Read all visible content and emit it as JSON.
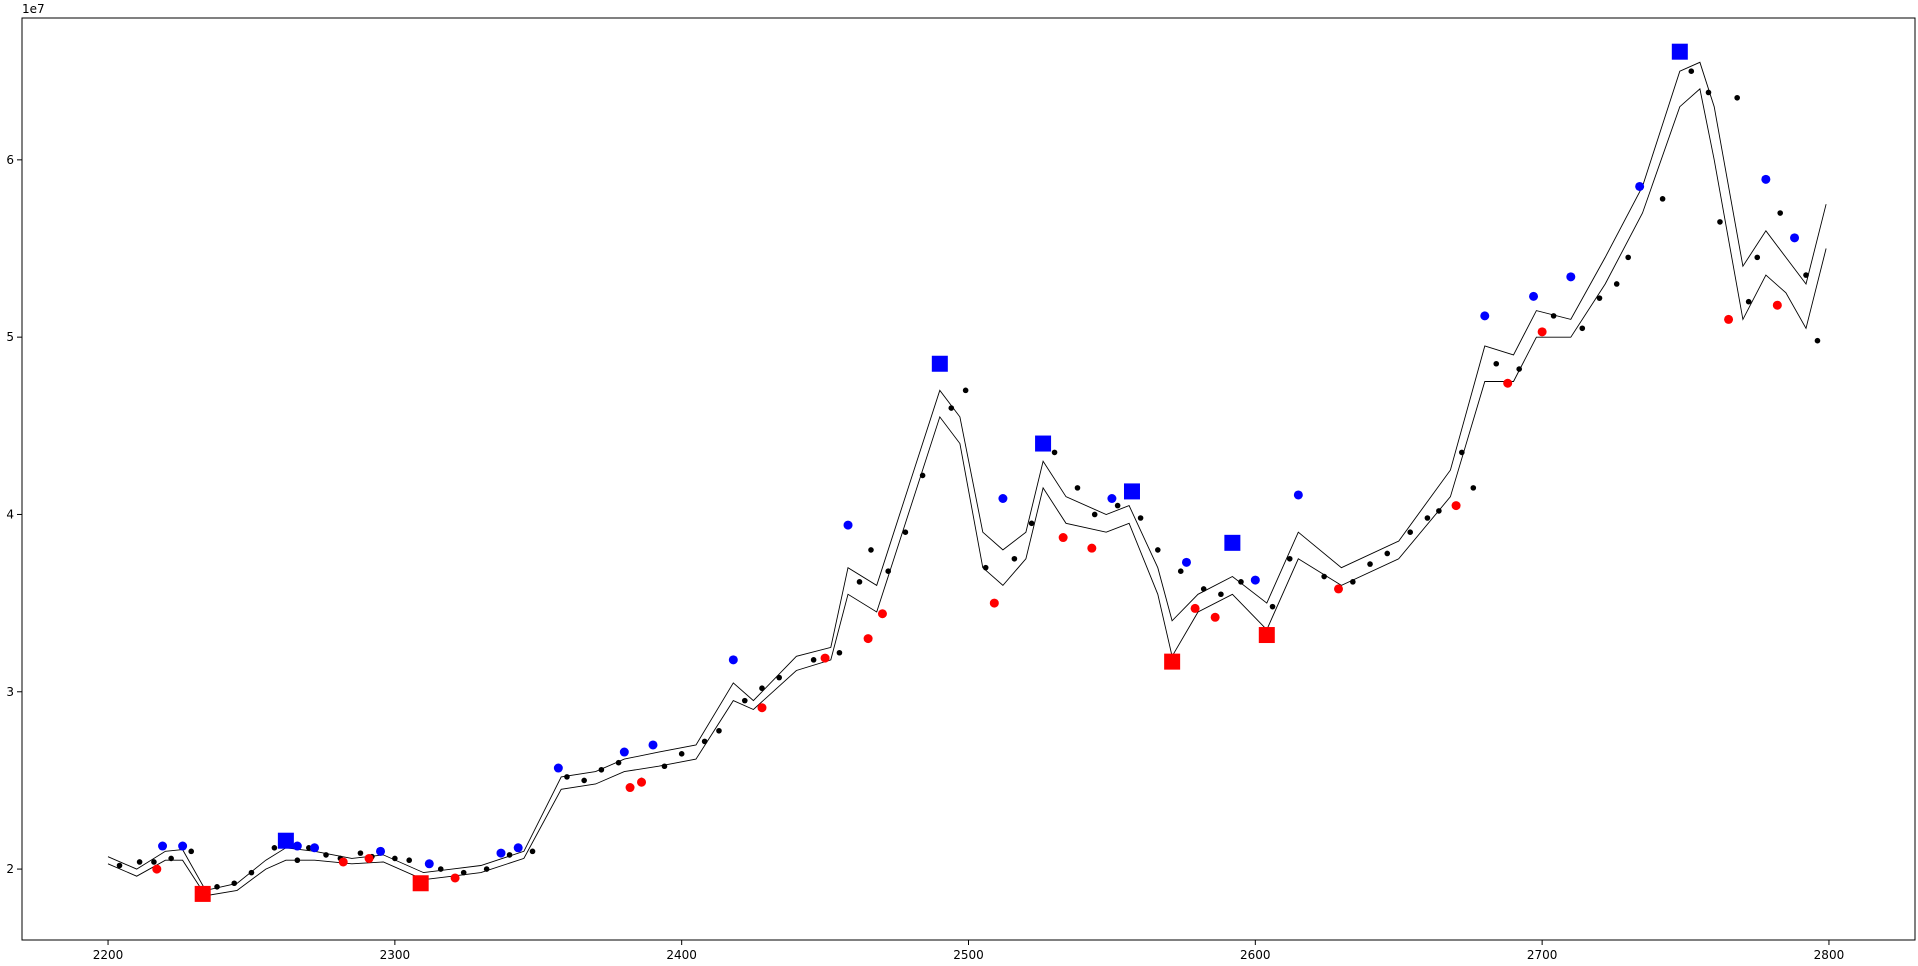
{
  "chart_data": {
    "type": "line",
    "title": "",
    "xlabel": "",
    "ylabel": "",
    "y_scale_label": "1e7",
    "xlim": [
      2170,
      2830
    ],
    "ylim": [
      16000000.0,
      68000000.0
    ],
    "x_ticks": [
      2200,
      2300,
      2400,
      2500,
      2600,
      2700,
      2800
    ],
    "y_ticks": [
      20000000.0,
      30000000.0,
      40000000.0,
      50000000.0,
      60000000.0
    ],
    "x_tick_labels": [
      "2200",
      "2300",
      "2400",
      "2500",
      "2600",
      "2700",
      "2800"
    ],
    "y_tick_labels": [
      "2",
      "3",
      "4",
      "5",
      "6"
    ],
    "grid": false,
    "legend": "none",
    "colors": {
      "line": "#000000",
      "small_point": "#000000",
      "peak": "#0000ff",
      "trough": "#ff0000"
    },
    "series": [
      {
        "style": "thin-line",
        "x": [
          2200,
          2210,
          2220,
          2226,
          2234,
          2245,
          2255,
          2262,
          2272,
          2285,
          2296,
          2310,
          2320,
          2330,
          2345,
          2358,
          2370,
          2380,
          2392,
          2405,
          2418,
          2425,
          2440,
          2452,
          2458,
          2468,
          2480,
          2490,
          2497,
          2505,
          2512,
          2520,
          2526,
          2534,
          2548,
          2556,
          2566,
          2571,
          2580,
          2592,
          2604,
          2615,
          2630,
          2650,
          2668,
          2680,
          2690,
          2698,
          2710,
          2722,
          2735,
          2748,
          2755,
          2760,
          2770,
          2778,
          2785,
          2792,
          2799
        ],
        "y": [
          20700000.0,
          20000000.0,
          21000000.0,
          21100000.0,
          18800000.0,
          19200000.0,
          20500000.0,
          21200000.0,
          21000000.0,
          20600000.0,
          20800000.0,
          19800000.0,
          20000000.0,
          20200000.0,
          21000000.0,
          25200000.0,
          25500000.0,
          26200000.0,
          26600000.0,
          27000000.0,
          30500000.0,
          29500000.0,
          32000000.0,
          32500000.0,
          37000000.0,
          36000000.0,
          42000000.0,
          47000000.0,
          45500000.0,
          39000000.0,
          38000000.0,
          39000000.0,
          43000000.0,
          41000000.0,
          40000000.0,
          40500000.0,
          37000000.0,
          34000000.0,
          35500000.0,
          36500000.0,
          35000000.0,
          39000000.0,
          37000000.0,
          38500000.0,
          42500000.0,
          49500000.0,
          49000000.0,
          51500000.0,
          51000000.0,
          54500000.0,
          58500000.0,
          65000000.0,
          65500000.0,
          63000000.0,
          54000000.0,
          56000000.0,
          54500000.0,
          53000000.0,
          57500000.0
        ]
      },
      {
        "style": "thin-line",
        "x": [
          2200,
          2210,
          2220,
          2226,
          2234,
          2245,
          2255,
          2262,
          2272,
          2285,
          2296,
          2310,
          2320,
          2330,
          2345,
          2358,
          2370,
          2380,
          2392,
          2405,
          2418,
          2425,
          2440,
          2452,
          2458,
          2468,
          2480,
          2490,
          2497,
          2505,
          2512,
          2520,
          2526,
          2534,
          2548,
          2556,
          2566,
          2571,
          2580,
          2592,
          2604,
          2615,
          2630,
          2650,
          2668,
          2680,
          2690,
          2698,
          2710,
          2722,
          2735,
          2748,
          2755,
          2760,
          2770,
          2778,
          2785,
          2792,
          2799
        ],
        "y": [
          20300000.0,
          19600000.0,
          20500000.0,
          20500000.0,
          18500000.0,
          18800000.0,
          20000000.0,
          20500000.0,
          20500000.0,
          20300000.0,
          20400000.0,
          19400000.0,
          19600000.0,
          19800000.0,
          20600000.0,
          24500000.0,
          24800000.0,
          25500000.0,
          25800000.0,
          26200000.0,
          29500000.0,
          29000000.0,
          31200000.0,
          31800000.0,
          35500000.0,
          34500000.0,
          40500000.0,
          45500000.0,
          44000000.0,
          37000000.0,
          36000000.0,
          37500000.0,
          41500000.0,
          39500000.0,
          39000000.0,
          39500000.0,
          35500000.0,
          32000000.0,
          34500000.0,
          35500000.0,
          33500000.0,
          37500000.0,
          36000000.0,
          37500000.0,
          41000000.0,
          47500000.0,
          47500000.0,
          50000000.0,
          50000000.0,
          53000000.0,
          57000000.0,
          63000000.0,
          64000000.0,
          60000000.0,
          51000000.0,
          53500000.0,
          52500000.0,
          50500000.0,
          55000000.0
        ]
      }
    ],
    "small_points": {
      "x": [
        2204,
        2211,
        2216,
        2222,
        2229,
        2238,
        2244,
        2250,
        2258,
        2266,
        2270,
        2276,
        2281,
        2288,
        2292,
        2300,
        2305,
        2316,
        2324,
        2332,
        2340,
        2348,
        2360,
        2366,
        2372,
        2378,
        2386,
        2394,
        2400,
        2408,
        2413,
        2422,
        2428,
        2434,
        2446,
        2455,
        2462,
        2466,
        2472,
        2478,
        2484,
        2494,
        2499,
        2506,
        2516,
        2522,
        2530,
        2538,
        2544,
        2552,
        2560,
        2566,
        2574,
        2582,
        2588,
        2595,
        2606,
        2612,
        2624,
        2634,
        2640,
        2646,
        2654,
        2660,
        2664,
        2672,
        2676,
        2684,
        2692,
        2704,
        2714,
        2720,
        2726,
        2730,
        2742,
        2752,
        2758,
        2762,
        2768,
        2772,
        2775,
        2783,
        2792,
        2796
      ],
      "y": [
        20200000.0,
        20400000.0,
        20400000.0,
        20600000.0,
        21000000.0,
        19000000.0,
        19200000.0,
        19800000.0,
        21200000.0,
        20500000.0,
        21200000.0,
        20800000.0,
        20600000.0,
        20900000.0,
        20700000.0,
        20600000.0,
        20500000.0,
        20000000.0,
        19800000.0,
        20000000.0,
        20800000.0,
        21000000.0,
        25200000.0,
        25000000.0,
        25600000.0,
        26000000.0,
        25000000.0,
        25800000.0,
        26500000.0,
        27200000.0,
        27800000.0,
        29500000.0,
        30200000.0,
        30800000.0,
        31800000.0,
        32200000.0,
        36200000.0,
        38000000.0,
        36800000.0,
        39000000.0,
        42200000.0,
        46000000.0,
        47000000.0,
        37000000.0,
        37500000.0,
        39500000.0,
        43500000.0,
        41500000.0,
        40000000.0,
        40500000.0,
        39800000.0,
        38000000.0,
        36800000.0,
        35800000.0,
        35500000.0,
        36200000.0,
        34800000.0,
        37500000.0,
        36500000.0,
        36200000.0,
        37200000.0,
        37800000.0,
        39000000.0,
        39800000.0,
        40200000.0,
        43500000.0,
        41500000.0,
        48500000.0,
        48200000.0,
        51200000.0,
        50500000.0,
        52200000.0,
        53000000.0,
        54500000.0,
        57800000.0,
        65000000.0,
        63800000.0,
        56500000.0,
        63500000.0,
        52000000.0,
        54500000.0,
        57000000.0,
        53500000.0,
        49800000.0
      ]
    },
    "peaks": {
      "x": [
        2219,
        2226,
        2266,
        2272,
        2295,
        2312,
        2337,
        2343,
        2357,
        2380,
        2390,
        2418,
        2458,
        2512,
        2550,
        2576,
        2600,
        2615,
        2680,
        2697,
        2710,
        2734,
        2778,
        2788
      ],
      "y": [
        21300000.0,
        21300000.0,
        21300000.0,
        21200000.0,
        21000000.0,
        20300000.0,
        20900000.0,
        21200000.0,
        25700000.0,
        26600000.0,
        27000000.0,
        31800000.0,
        39400000.0,
        40900000.0,
        40900000.0,
        37300000.0,
        36300000.0,
        41100000.0,
        51200000.0,
        52300000.0,
        53400000.0,
        58500000.0,
        58900000.0,
        55600000.0
      ]
    },
    "troughs": {
      "x": [
        2217,
        2282,
        2291,
        2321,
        2382,
        2386,
        2428,
        2450,
        2465,
        2470,
        2509,
        2533,
        2543,
        2579,
        2586,
        2629,
        2670,
        2688,
        2700,
        2765,
        2782
      ],
      "y": [
        20000000.0,
        20400000.0,
        20600000.0,
        19500000.0,
        24600000.0,
        24900000.0,
        29100000.0,
        31900000.0,
        33000000.0,
        34400000.0,
        35000000.0,
        38700000.0,
        38100000.0,
        34700000.0,
        34200000.0,
        35800000.0,
        40500000.0,
        47400000.0,
        50300000.0,
        51000000.0,
        51800000.0
      ]
    },
    "major_peaks": {
      "x": [
        2262,
        2490,
        2526,
        2557,
        2592,
        2748
      ],
      "y": [
        21600000.0,
        48500000.0,
        44000000.0,
        41300000.0,
        38400000.0,
        66100000.0
      ]
    },
    "major_troughs": {
      "x": [
        2233,
        2309,
        2571,
        2604
      ],
      "y": [
        18600000.0,
        19200000.0,
        31700000.0,
        33200000.0
      ]
    }
  }
}
